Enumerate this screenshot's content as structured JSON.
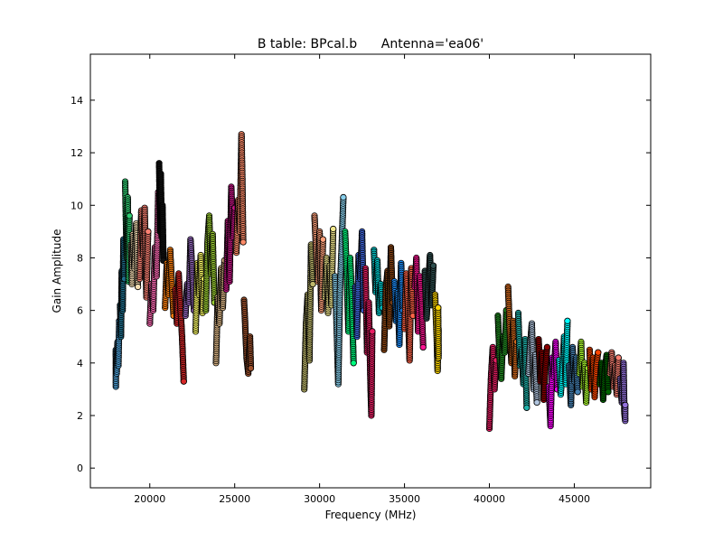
{
  "chart_data": {
    "type": "scatter",
    "title": "B table: BPcal.b      Antenna='ea06'",
    "xlabel": "Frequency (MHz)",
    "ylabel": "Gain Amplitude",
    "xlim": [
      16500,
      49500
    ],
    "ylim": [
      -0.75,
      15.75
    ],
    "x_ticks": [
      20000,
      25000,
      30000,
      35000,
      40000,
      45000
    ],
    "y_ticks": [
      0,
      2,
      4,
      6,
      8,
      10,
      12,
      14
    ],
    "grid": false,
    "legend": "none",
    "marker": "circle with black edge",
    "series": [
      {
        "values": [
          [
            18000,
            3.1
          ],
          [
            18000,
            4.5
          ],
          [
            18050,
            3.6
          ],
          [
            18100,
            4.8
          ],
          [
            18150,
            3.9
          ],
          [
            18200,
            5.6
          ]
        ],
        "color": "#4c9fd6"
      },
      {
        "values": [
          [
            18250,
            6.2
          ],
          [
            18300,
            5.0
          ],
          [
            18350,
            7.5
          ],
          [
            18400,
            6.0
          ],
          [
            18450,
            8.7
          ],
          [
            18500,
            7.2
          ]
        ],
        "color": "#1f6e8c"
      },
      {
        "values": [
          [
            18550,
            10.9
          ],
          [
            18600,
            9.2
          ],
          [
            18650,
            8.0
          ],
          [
            18700,
            10.3
          ],
          [
            18750,
            7.1
          ],
          [
            18800,
            9.6
          ]
        ],
        "color": "#2ecc71"
      },
      {
        "values": [
          [
            18900,
            8.5
          ],
          [
            18950,
            7.0
          ],
          [
            19000,
            8.9
          ],
          [
            19100,
            7.6
          ],
          [
            19200,
            9.3
          ],
          [
            19300,
            6.9
          ]
        ],
        "color": "#f5deb3"
      },
      {
        "values": [
          [
            19400,
            7.2
          ],
          [
            19500,
            9.8
          ],
          [
            19600,
            8.1
          ],
          [
            19700,
            9.9
          ],
          [
            19800,
            6.5
          ],
          [
            19900,
            9.0
          ]
        ],
        "color": "#fa8072"
      },
      {
        "values": [
          [
            20000,
            5.5
          ],
          [
            20100,
            7.0
          ],
          [
            20200,
            6.0
          ],
          [
            20300,
            8.4
          ],
          [
            20400,
            7.3
          ],
          [
            20500,
            10.5
          ]
        ],
        "color": "#ff69b4"
      },
      {
        "values": [
          [
            20550,
            11.6
          ],
          [
            20600,
            9.0
          ],
          [
            20650,
            11.2
          ],
          [
            20700,
            8.8
          ],
          [
            20750,
            10.0
          ],
          [
            20800,
            7.9
          ]
        ],
        "color": "#111111"
      },
      {
        "values": [
          [
            20900,
            6.1
          ],
          [
            21000,
            7.8
          ],
          [
            21100,
            6.6
          ],
          [
            21200,
            8.3
          ],
          [
            21300,
            7.0
          ],
          [
            21400,
            5.8
          ]
        ],
        "color": "#ff7f0e"
      },
      {
        "values": [
          [
            21500,
            6.8
          ],
          [
            21600,
            5.5
          ],
          [
            21700,
            7.4
          ],
          [
            21800,
            6.2
          ],
          [
            21900,
            5.0
          ],
          [
            22000,
            3.3
          ]
        ],
        "color": "#d62728"
      },
      {
        "values": [
          [
            22100,
            5.8
          ],
          [
            22200,
            7.0
          ],
          [
            22300,
            6.3
          ],
          [
            22400,
            8.7
          ],
          [
            22500,
            7.5
          ],
          [
            22600,
            6.0
          ]
        ],
        "color": "#9467bd"
      },
      {
        "values": [
          [
            22700,
            5.2
          ],
          [
            22800,
            7.8
          ],
          [
            22900,
            6.6
          ],
          [
            23000,
            8.1
          ],
          [
            23100,
            5.9
          ],
          [
            23200,
            7.2
          ]
        ],
        "color": "#ffff66"
      },
      {
        "values": [
          [
            23300,
            6.0
          ],
          [
            23400,
            8.6
          ],
          [
            23500,
            9.6
          ],
          [
            23600,
            7.4
          ],
          [
            23700,
            8.9
          ],
          [
            23800,
            6.3
          ]
        ],
        "color": "#9acd32"
      },
      {
        "values": [
          [
            23900,
            4.0
          ],
          [
            24000,
            6.5
          ],
          [
            24100,
            5.5
          ],
          [
            24200,
            7.6
          ],
          [
            24300,
            6.1
          ],
          [
            24400,
            7.9
          ]
        ],
        "color": "#deb887"
      },
      {
        "values": [
          [
            24500,
            6.8
          ],
          [
            24600,
            9.4
          ],
          [
            24700,
            7.1
          ],
          [
            24800,
            10.7
          ],
          [
            24900,
            8.8
          ],
          [
            25000,
            9.9
          ]
        ],
        "color": "#c71585"
      },
      {
        "values": [
          [
            25100,
            8.2
          ],
          [
            25200,
            10.2
          ],
          [
            25300,
            9.0
          ],
          [
            25400,
            12.7
          ],
          [
            25450,
            11.0
          ],
          [
            25500,
            8.6
          ]
        ],
        "color": "#ff8c69"
      },
      {
        "values": [
          [
            25550,
            6.4
          ],
          [
            25600,
            5.7
          ],
          [
            25700,
            4.2
          ],
          [
            25800,
            3.6
          ],
          [
            25900,
            5.0
          ],
          [
            25950,
            3.8
          ]
        ],
        "color": "#a0522d"
      },
      {
        "values": [
          [
            29100,
            3.0
          ],
          [
            29200,
            5.5
          ],
          [
            29300,
            6.6
          ],
          [
            29400,
            4.1
          ],
          [
            29500,
            8.5
          ],
          [
            29600,
            7.0
          ]
        ],
        "color": "#bdb76b"
      },
      {
        "values": [
          [
            29700,
            9.6
          ],
          [
            29800,
            8.2
          ],
          [
            29900,
            7.1
          ],
          [
            30000,
            9.0
          ],
          [
            30100,
            6.0
          ],
          [
            30200,
            8.7
          ]
        ],
        "color": "#ffa07a"
      },
      {
        "values": [
          [
            30300,
            6.5
          ],
          [
            30400,
            8.0
          ],
          [
            30500,
            5.9
          ],
          [
            30600,
            7.7
          ],
          [
            30700,
            6.2
          ],
          [
            30800,
            9.1
          ]
        ],
        "color": "#f0e68c"
      },
      {
        "values": [
          [
            30900,
            7.3
          ],
          [
            31000,
            5.5
          ],
          [
            31100,
            3.2
          ],
          [
            31200,
            6.8
          ],
          [
            31300,
            8.4
          ],
          [
            31400,
            10.3
          ]
        ],
        "color": "#87ceeb"
      },
      {
        "values": [
          [
            31500,
            9.0
          ],
          [
            31600,
            7.4
          ],
          [
            31700,
            5.2
          ],
          [
            31800,
            8.0
          ],
          [
            31900,
            6.5
          ],
          [
            32000,
            4.0
          ]
        ],
        "color": "#00ff7f"
      },
      {
        "values": [
          [
            32100,
            6.9
          ],
          [
            32200,
            5.0
          ],
          [
            32300,
            8.1
          ],
          [
            32400,
            7.2
          ],
          [
            32500,
            9.0
          ],
          [
            32600,
            6.0
          ]
        ],
        "color": "#4169e1"
      },
      {
        "values": [
          [
            32700,
            7.6
          ],
          [
            32800,
            4.4
          ],
          [
            32900,
            6.3
          ],
          [
            33000,
            3.1
          ],
          [
            33050,
            2.0
          ],
          [
            33100,
            5.2
          ]
        ],
        "color": "#e91e63"
      },
      {
        "values": [
          [
            33200,
            8.3
          ],
          [
            33300,
            6.7
          ],
          [
            33400,
            7.9
          ],
          [
            33500,
            5.9
          ],
          [
            33600,
            7.0
          ],
          [
            33700,
            6.1
          ]
        ],
        "color": "#00ced1"
      },
      {
        "values": [
          [
            33800,
            4.5
          ],
          [
            33900,
            6.8
          ],
          [
            34000,
            7.5
          ],
          [
            34100,
            5.4
          ],
          [
            34200,
            8.4
          ],
          [
            34300,
            6.3
          ]
        ],
        "color": "#8b4513"
      },
      {
        "values": [
          [
            34400,
            7.1
          ],
          [
            34500,
            5.6
          ],
          [
            34600,
            6.7
          ],
          [
            34700,
            4.7
          ],
          [
            34800,
            7.8
          ],
          [
            34900,
            6.0
          ]
        ],
        "color": "#1e90ff"
      },
      {
        "values": [
          [
            35000,
            5.3
          ],
          [
            35100,
            7.4
          ],
          [
            35200,
            6.2
          ],
          [
            35300,
            4.1
          ],
          [
            35400,
            7.6
          ],
          [
            35500,
            5.8
          ]
        ],
        "color": "#ff6347"
      },
      {
        "values": [
          [
            35600,
            6.9
          ],
          [
            35700,
            8.0
          ],
          [
            35800,
            5.2
          ],
          [
            35900,
            7.3
          ],
          [
            36000,
            6.4
          ],
          [
            36100,
            4.6
          ]
        ],
        "color": "#ff1493"
      },
      {
        "values": [
          [
            36200,
            7.5
          ],
          [
            36300,
            5.7
          ],
          [
            36400,
            6.8
          ],
          [
            36500,
            8.1
          ],
          [
            36600,
            6.2
          ],
          [
            36700,
            7.7
          ]
        ],
        "color": "#2f4f4f"
      },
      {
        "values": [
          [
            36800,
            6.6
          ],
          [
            36900,
            4.9
          ],
          [
            36950,
            3.7
          ],
          [
            37000,
            5.3
          ],
          [
            37000,
            4.2
          ],
          [
            36980,
            6.1
          ]
        ],
        "color": "#ffd700"
      },
      {
        "values": [
          [
            40000,
            1.5
          ],
          [
            40050,
            2.6
          ],
          [
            40100,
            3.5
          ],
          [
            40200,
            4.6
          ],
          [
            40300,
            3.0
          ],
          [
            40400,
            4.1
          ]
        ],
        "color": "#e91e63"
      },
      {
        "values": [
          [
            40500,
            5.8
          ],
          [
            40600,
            4.2
          ],
          [
            40700,
            3.4
          ],
          [
            40800,
            5.0
          ],
          [
            40900,
            4.4
          ],
          [
            41000,
            6.0
          ]
        ],
        "color": "#228b22"
      },
      {
        "values": [
          [
            41100,
            6.9
          ],
          [
            41200,
            5.2
          ],
          [
            41300,
            4.0
          ],
          [
            41400,
            5.6
          ],
          [
            41500,
            3.5
          ],
          [
            41600,
            4.8
          ]
        ],
        "color": "#d2691e"
      },
      {
        "values": [
          [
            41700,
            5.9
          ],
          [
            41800,
            3.9
          ],
          [
            41900,
            4.5
          ],
          [
            42000,
            3.2
          ],
          [
            42100,
            4.9
          ],
          [
            42200,
            2.3
          ]
        ],
        "color": "#20b2aa"
      },
      {
        "values": [
          [
            42300,
            3.6
          ],
          [
            42400,
            4.7
          ],
          [
            42500,
            5.5
          ],
          [
            42600,
            3.0
          ],
          [
            42700,
            4.3
          ],
          [
            42800,
            2.5
          ]
        ],
        "color": "#b0c4de"
      },
      {
        "values": [
          [
            42900,
            4.9
          ],
          [
            43000,
            3.3
          ],
          [
            43100,
            4.4
          ],
          [
            43200,
            2.6
          ],
          [
            43300,
            3.8
          ],
          [
            43400,
            4.6
          ]
        ],
        "color": "#8b0000"
      },
      {
        "values": [
          [
            43500,
            3.1
          ],
          [
            43600,
            1.6
          ],
          [
            43700,
            4.2
          ],
          [
            43800,
            3.5
          ],
          [
            43900,
            4.8
          ],
          [
            44000,
            3.0
          ]
        ],
        "color": "#ff00ff"
      },
      {
        "values": [
          [
            44100,
            4.1
          ],
          [
            44200,
            2.8
          ],
          [
            44300,
            3.7
          ],
          [
            44400,
            5.0
          ],
          [
            44500,
            3.2
          ],
          [
            44600,
            5.6
          ]
        ],
        "color": "#00ffff"
      },
      {
        "values": [
          [
            44700,
            3.9
          ],
          [
            44800,
            2.4
          ],
          [
            44900,
            4.6
          ],
          [
            45000,
            3.3
          ],
          [
            45100,
            4.2
          ],
          [
            45200,
            2.9
          ]
        ],
        "color": "#4682b4"
      },
      {
        "values": [
          [
            45300,
            3.6
          ],
          [
            45400,
            4.8
          ],
          [
            45500,
            3.1
          ],
          [
            45600,
            4.0
          ],
          [
            45700,
            2.5
          ],
          [
            45800,
            3.8
          ]
        ],
        "color": "#adff2f"
      },
      {
        "values": [
          [
            45900,
            4.5
          ],
          [
            46000,
            3.0
          ],
          [
            46100,
            4.2
          ],
          [
            46200,
            2.7
          ],
          [
            46300,
            3.9
          ],
          [
            46400,
            4.4
          ]
        ],
        "color": "#ff4500"
      },
      {
        "values": [
          [
            46500,
            3.2
          ],
          [
            46600,
            4.0
          ],
          [
            46700,
            2.6
          ],
          [
            46800,
            3.7
          ],
          [
            46900,
            4.3
          ],
          [
            47000,
            2.9
          ]
        ],
        "color": "#006400"
      },
      {
        "values": [
          [
            47100,
            3.6
          ],
          [
            47200,
            4.4
          ],
          [
            47300,
            3.1
          ],
          [
            47400,
            3.9
          ],
          [
            47500,
            2.8
          ],
          [
            47600,
            4.2
          ]
        ],
        "color": "#fa8072"
      },
      {
        "values": [
          [
            47700,
            3.4
          ],
          [
            47800,
            2.5
          ],
          [
            47900,
            4.0
          ],
          [
            47950,
            2.1
          ],
          [
            48000,
            1.8
          ],
          [
            48000,
            2.4
          ]
        ],
        "color": "#9370db"
      }
    ]
  }
}
